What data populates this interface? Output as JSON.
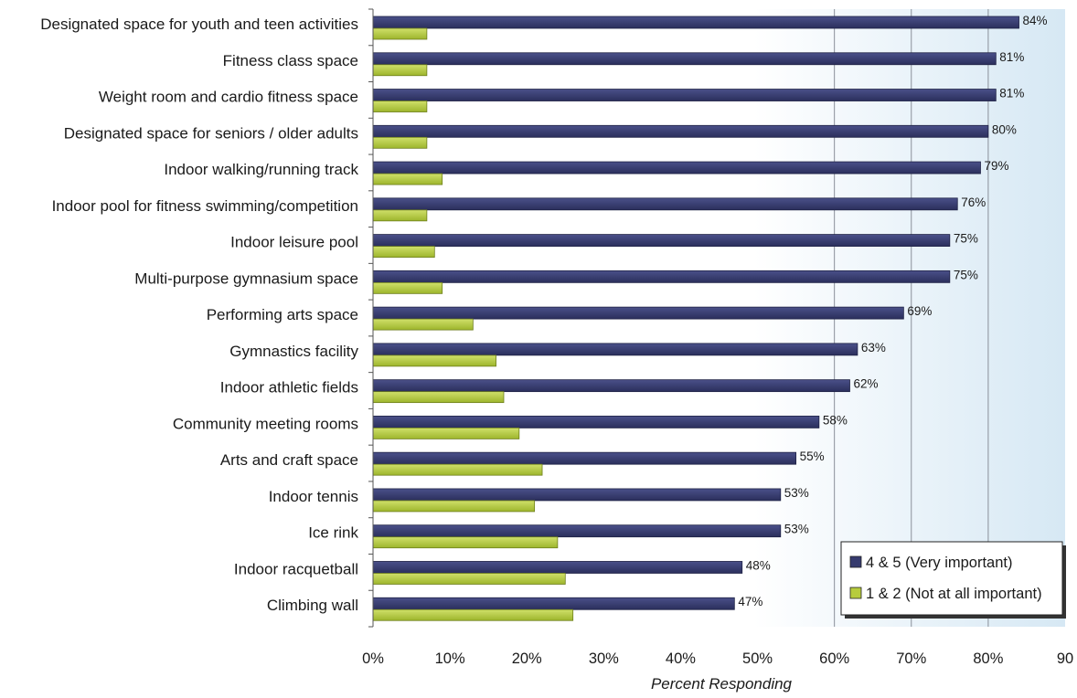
{
  "chart_data": {
    "type": "bar",
    "orientation": "horizontal",
    "categories": [
      "Designated space for youth and teen activities",
      "Fitness class space",
      "Weight room and cardio fitness space",
      "Designated space for seniors / older adults",
      "Indoor walking/running track",
      "Indoor pool for fitness swimming/competition",
      "Indoor leisure pool",
      "Multi-purpose gymnasium space",
      "Performing arts space",
      "Gymnastics facility",
      "Indoor athletic fields",
      "Community meeting rooms",
      "Arts and craft space",
      "Indoor tennis",
      "Ice rink",
      "Indoor racquetball",
      "Climbing wall"
    ],
    "series": [
      {
        "name": "4 & 5 (Very important)",
        "color": "#363b6e",
        "values": [
          84,
          81,
          81,
          80,
          79,
          76,
          75,
          75,
          69,
          63,
          62,
          58,
          55,
          53,
          53,
          48,
          47
        ],
        "data_labels": [
          "84%",
          "81%",
          "81%",
          "80%",
          "79%",
          "76%",
          "75%",
          "75%",
          "69%",
          "63%",
          "62%",
          "58%",
          "55%",
          "53%",
          "53%",
          "48%",
          "47%"
        ]
      },
      {
        "name": "1 & 2 (Not at all important)",
        "color": "#b7cc3d",
        "values": [
          7,
          7,
          7,
          7,
          9,
          7,
          8,
          9,
          13,
          16,
          17,
          19,
          22,
          21,
          24,
          25,
          26
        ]
      }
    ],
    "xlim": [
      0,
      90
    ],
    "xticks": [
      "0%",
      "10%",
      "20%",
      "30%",
      "40%",
      "50%",
      "60%",
      "70%",
      "80%",
      "90"
    ],
    "xlabel": "Percent Responding",
    "title": "",
    "grid": "vertical gridlines at 60, 70, 80",
    "legend_position": "bottom-right"
  }
}
